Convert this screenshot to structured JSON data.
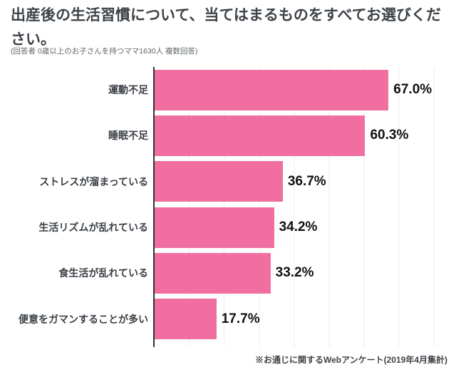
{
  "chart_data": {
    "type": "bar",
    "orientation": "horizontal",
    "title": "出産後の生活習慣について、当てはまるものをすべてお選びください。",
    "subtitle": "(回答者 0歳以上のお子さんを持つママ1630人 複数回答)",
    "categories": [
      "運動不足",
      "睡眠不足",
      "ストレスが溜まっている",
      "生活リズムが乱れている",
      "食生活が乱れている",
      "便意をガマンすることが多い"
    ],
    "values": [
      67.0,
      60.3,
      36.7,
      34.2,
      33.2,
      17.7
    ],
    "value_labels": [
      "67.0%",
      "60.3%",
      "36.7%",
      "34.2%",
      "33.2%",
      "17.7%"
    ],
    "xlabel": "",
    "ylabel": "",
    "xlim": [
      0,
      80
    ],
    "gridline_interval_percent": 10,
    "grid": true,
    "legend": false,
    "bar_color": "#f06fa0",
    "axis_color": "#333333",
    "gridline_color": "#ececec",
    "title_color": "#3e4348",
    "value_label_color": "#111111",
    "footnote": "※お通じに関するWebアンケート(2019年4月集計)"
  }
}
